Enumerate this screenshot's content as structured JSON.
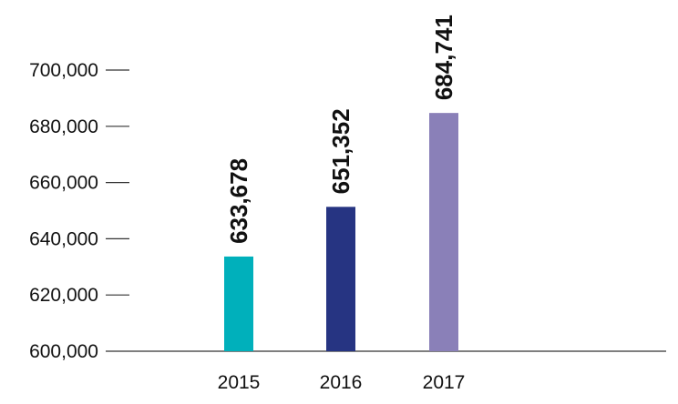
{
  "chart_data": {
    "type": "bar",
    "categories": [
      "2015",
      "2016",
      "2017"
    ],
    "values": [
      633678,
      651352,
      684741
    ],
    "data_labels": [
      "633,678",
      "651,352",
      "684,741"
    ],
    "colors": [
      "#00b0bb",
      "#263482",
      "#8a80b8"
    ],
    "yticks": [
      600000,
      620000,
      640000,
      660000,
      680000,
      700000
    ],
    "ytick_labels": [
      "600,000",
      "620,000",
      "640,000",
      "660,000",
      "680,000",
      "700,000"
    ],
    "ylim": [
      600000,
      700000
    ],
    "grid": false,
    "title": "",
    "xlabel": "",
    "ylabel": ""
  }
}
